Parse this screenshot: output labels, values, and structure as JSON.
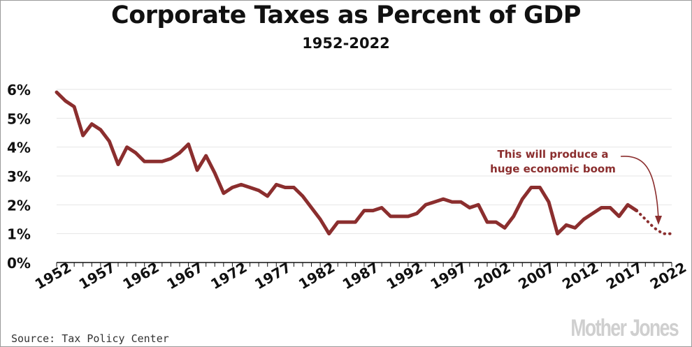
{
  "chart_data": {
    "type": "line",
    "title": "Corporate Taxes as Percent of GDP",
    "subtitle": "1952-2022",
    "xlim": [
      1952,
      2022
    ],
    "ylim": [
      0,
      6
    ],
    "y_ticks": [
      "0%",
      "1%",
      "2%",
      "3%",
      "4%",
      "5%",
      "6%"
    ],
    "y_tick_values": [
      0,
      1,
      2,
      3,
      4,
      5,
      6
    ],
    "x_ticks": [
      "1952",
      "1957",
      "1962",
      "1967",
      "1972",
      "1977",
      "1982",
      "1987",
      "1992",
      "1997",
      "2002",
      "2007",
      "2012",
      "2017",
      "2022"
    ],
    "x_tick_values": [
      1952,
      1957,
      1962,
      1967,
      1972,
      1977,
      1982,
      1987,
      1992,
      1997,
      2002,
      2007,
      2012,
      2017,
      2022
    ],
    "grid": true,
    "series": [
      {
        "style": "solid",
        "color": "#8b2e2e",
        "x": [
          1952,
          1953,
          1954,
          1955,
          1956,
          1957,
          1958,
          1959,
          1960,
          1961,
          1962,
          1963,
          1964,
          1965,
          1966,
          1967,
          1968,
          1969,
          1970,
          1971,
          1972,
          1973,
          1974,
          1975,
          1976,
          1977,
          1978,
          1979,
          1980,
          1981,
          1982,
          1983,
          1984,
          1985,
          1986,
          1987,
          1988,
          1989,
          1990,
          1991,
          1992,
          1993,
          1994,
          1995,
          1996,
          1997,
          1998,
          1999,
          2000,
          2001,
          2002,
          2003,
          2004,
          2005,
          2006,
          2007,
          2008,
          2009,
          2010,
          2011,
          2012,
          2013,
          2014,
          2015,
          2016,
          2017,
          2018
        ],
        "values": [
          5.9,
          5.6,
          5.4,
          4.4,
          4.8,
          4.6,
          4.2,
          3.4,
          4.0,
          3.8,
          3.5,
          3.5,
          3.5,
          3.6,
          3.8,
          4.1,
          3.2,
          3.7,
          3.1,
          2.4,
          2.6,
          2.7,
          2.6,
          2.5,
          2.3,
          2.7,
          2.6,
          2.6,
          2.3,
          1.9,
          1.5,
          1.0,
          1.4,
          1.4,
          1.4,
          1.8,
          1.8,
          1.9,
          1.6,
          1.6,
          1.6,
          1.7,
          2.0,
          2.1,
          2.2,
          2.1,
          2.1,
          1.9,
          2.0,
          1.4,
          1.4,
          1.2,
          1.6,
          2.2,
          2.6,
          2.6,
          2.1,
          1.0,
          1.3,
          1.2,
          1.5,
          1.7,
          1.9,
          1.9,
          1.6,
          2.0,
          1.8
        ]
      },
      {
        "style": "dotted",
        "color": "#8b2e2e",
        "x": [
          2018,
          2019,
          2020,
          2021,
          2022
        ],
        "values": [
          1.8,
          1.5,
          1.2,
          1.0,
          1.0
        ]
      }
    ],
    "annotation": {
      "lines": [
        "This will produce a",
        "huge economic boom"
      ],
      "color": "#8b2e2e"
    }
  },
  "footer": {
    "source": "Source: Tax Policy Center",
    "brand": "Mother Jones"
  }
}
